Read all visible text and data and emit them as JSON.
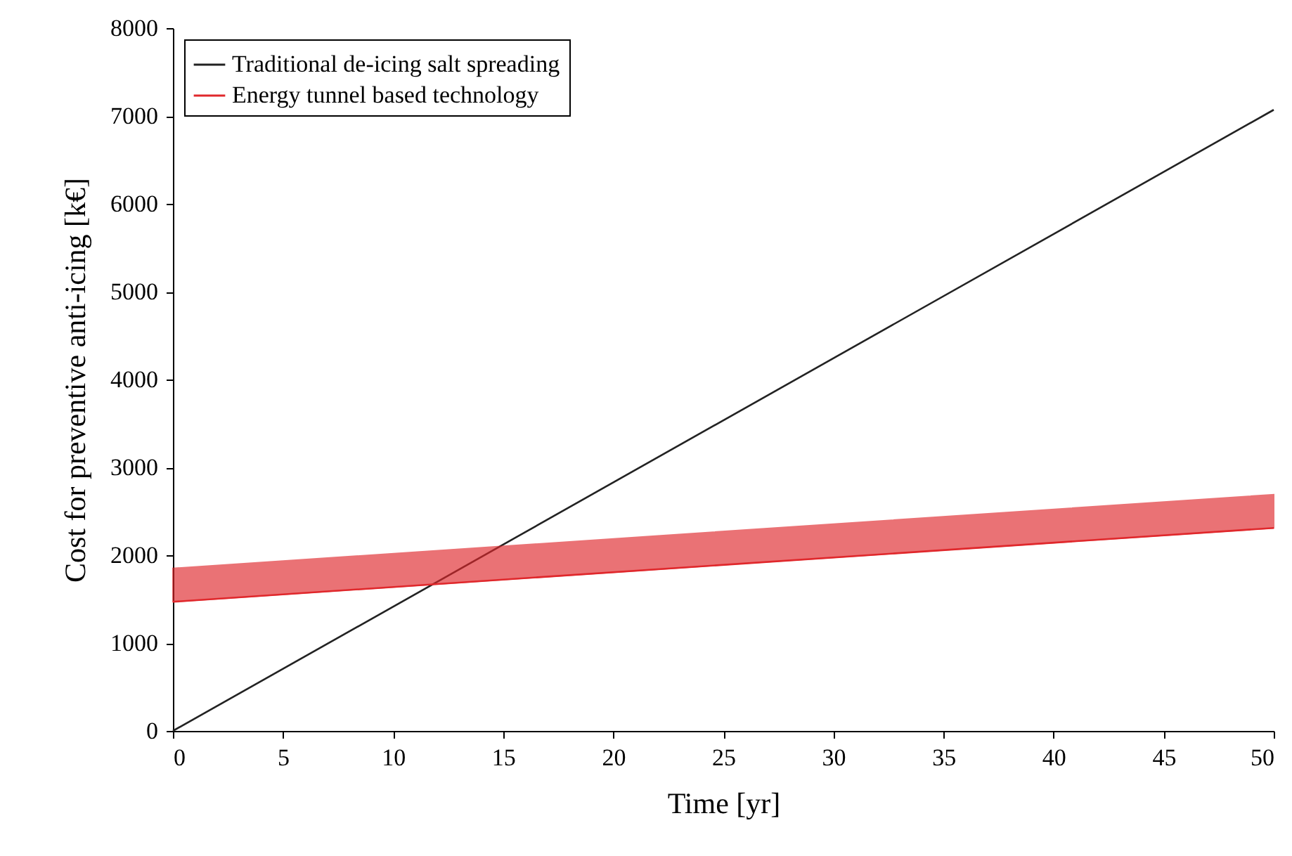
{
  "chart_data": {
    "type": "line",
    "xlabel": "Time [yr]",
    "ylabel": "Cost for preventive anti-icing [k€]",
    "x": [
      0,
      50
    ],
    "series": [
      {
        "name": "Traditional de-icing salt spreading",
        "color": "#222222",
        "values": [
          0,
          7070
        ]
      },
      {
        "name": "Energy tunnel based technology",
        "color": "#e0282c",
        "values": [
          1470,
          2310
        ],
        "lower": [
          1470,
          2310
        ],
        "upper": [
          1850,
          2690
        ]
      }
    ],
    "xlim": [
      0,
      50
    ],
    "xticks": [
      0,
      5,
      10,
      15,
      20,
      25,
      30,
      35,
      40,
      45,
      50
    ],
    "ylim": [
      0,
      8000
    ],
    "yticks": [
      0,
      1000,
      2000,
      3000,
      4000,
      5000,
      6000,
      7000,
      8000
    ],
    "grid": false,
    "legend": "top left",
    "line_style": "solid",
    "marker": "none"
  }
}
